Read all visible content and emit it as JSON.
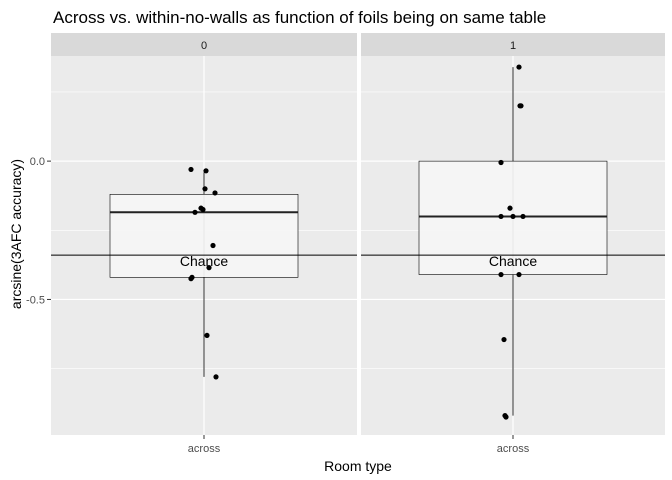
{
  "chart_data": {
    "type": "boxplot",
    "title": "Across vs. within-no-walls as function of foils being on same table",
    "xlabel": "Room type",
    "ylabel": "arcsine(3AFC accuracy)",
    "y_ticks": [
      0.0,
      -0.5
    ],
    "y_tick_labels": [
      "0.0",
      "-0.5"
    ],
    "ylim": [
      -0.99,
      0.38
    ],
    "reference_line": {
      "y": -0.34,
      "label": "Chance"
    },
    "grid": true,
    "panels": [
      {
        "facet_label": "0",
        "category": "across",
        "box": {
          "whisker_low": -0.78,
          "q1": -0.42,
          "median": -0.185,
          "q3": -0.12,
          "whisker_high": -0.04
        },
        "points": [
          {
            "x": -0.13,
            "y": -0.03
          },
          {
            "x": 0.02,
            "y": -0.035
          },
          {
            "x": 0.01,
            "y": -0.1
          },
          {
            "x": 0.11,
            "y": -0.115
          },
          {
            "x": -0.03,
            "y": -0.17
          },
          {
            "x": -0.01,
            "y": -0.175
          },
          {
            "x": -0.09,
            "y": -0.185
          },
          {
            "x": 0.09,
            "y": -0.305
          },
          {
            "x": 0.05,
            "y": -0.385
          },
          {
            "x": -0.13,
            "y": -0.425
          },
          {
            "x": -0.12,
            "y": -0.42
          },
          {
            "x": 0.03,
            "y": -0.63
          },
          {
            "x": 0.12,
            "y": -0.78
          }
        ]
      },
      {
        "facet_label": "1",
        "category": "across",
        "box": {
          "whisker_low": -0.92,
          "q1": -0.41,
          "median": -0.2,
          "q3": 0.0,
          "whisker_high": 0.34
        },
        "points": [
          {
            "x": 0.06,
            "y": 0.34
          },
          {
            "x": 0.08,
            "y": 0.2
          },
          {
            "x": 0.07,
            "y": 0.2
          },
          {
            "x": -0.12,
            "y": -0.005
          },
          {
            "x": -0.03,
            "y": -0.17
          },
          {
            "x": -0.12,
            "y": -0.2
          },
          {
            "x": 0.0,
            "y": -0.2
          },
          {
            "x": 0.1,
            "y": -0.2
          },
          {
            "x": -0.12,
            "y": -0.41
          },
          {
            "x": 0.06,
            "y": -0.41
          },
          {
            "x": -0.09,
            "y": -0.645
          },
          {
            "x": -0.07,
            "y": -0.925
          },
          {
            "x": -0.08,
            "y": -0.92
          }
        ]
      }
    ],
    "colors": {
      "panel_bg": "#ebebeb",
      "strip_bg": "#d9d9d9",
      "grid": "#ffffff",
      "box_fill": "#f5f5f5",
      "ink": "#000000",
      "tick_text": "#4d4d4d",
      "strip_text": "#1a1a1a"
    }
  }
}
